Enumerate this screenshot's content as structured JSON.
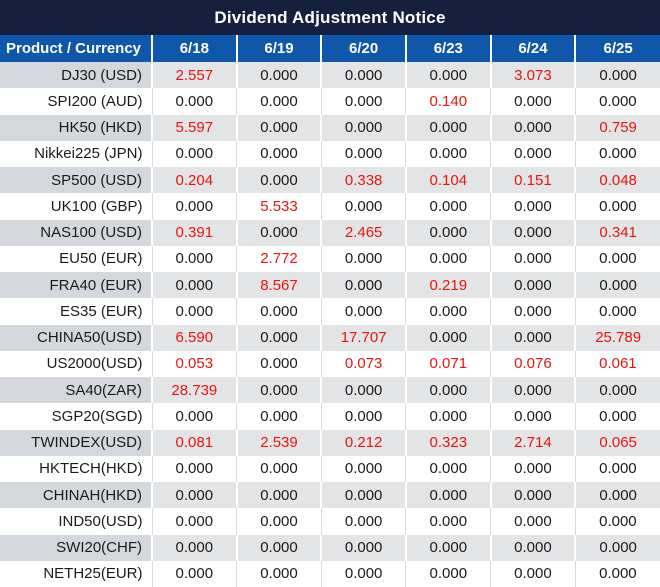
{
  "title": "Dividend Adjustment Notice",
  "colors": {
    "title_bg": "#14203e",
    "header_bg": "#0f57a8",
    "header_text": "#ffffff",
    "zero_text": "#1b1b1b",
    "nonzero_text": "#e8150f",
    "stripe_data_bg": "#e3e4e6",
    "stripe_product_bg": "#d4d7db",
    "white_row_divider": "#d9d9d9"
  },
  "chart_data": {
    "type": "table",
    "title": "Dividend Adjustment Notice",
    "columns": [
      "Product / Currency",
      "6/18",
      "6/19",
      "6/20",
      "6/23",
      "6/24",
      "6/25"
    ],
    "rows": [
      {
        "product": "DJ30 (USD)",
        "values": [
          "2.557",
          "0.000",
          "0.000",
          "0.000",
          "3.073",
          "0.000"
        ]
      },
      {
        "product": "SPI200 (AUD)",
        "values": [
          "0.000",
          "0.000",
          "0.000",
          "0.140",
          "0.000",
          "0.000"
        ]
      },
      {
        "product": "HK50 (HKD)",
        "values": [
          "5.597",
          "0.000",
          "0.000",
          "0.000",
          "0.000",
          "0.759"
        ]
      },
      {
        "product": "Nikkei225 (JPN)",
        "values": [
          "0.000",
          "0.000",
          "0.000",
          "0.000",
          "0.000",
          "0.000"
        ]
      },
      {
        "product": "SP500 (USD)",
        "values": [
          "0.204",
          "0.000",
          "0.338",
          "0.104",
          "0.151",
          "0.048"
        ]
      },
      {
        "product": "UK100 (GBP)",
        "values": [
          "0.000",
          "5.533",
          "0.000",
          "0.000",
          "0.000",
          "0.000"
        ]
      },
      {
        "product": "NAS100 (USD)",
        "values": [
          "0.391",
          "0.000",
          "2.465",
          "0.000",
          "0.000",
          "0.341"
        ]
      },
      {
        "product": "EU50 (EUR)",
        "values": [
          "0.000",
          "2.772",
          "0.000",
          "0.000",
          "0.000",
          "0.000"
        ]
      },
      {
        "product": "FRA40 (EUR)",
        "values": [
          "0.000",
          "8.567",
          "0.000",
          "0.219",
          "0.000",
          "0.000"
        ]
      },
      {
        "product": "ES35 (EUR)",
        "values": [
          "0.000",
          "0.000",
          "0.000",
          "0.000",
          "0.000",
          "0.000"
        ]
      },
      {
        "product": "CHINA50(USD)",
        "values": [
          "6.590",
          "0.000",
          "17.707",
          "0.000",
          "0.000",
          "25.789"
        ]
      },
      {
        "product": "US2000(USD)",
        "values": [
          "0.053",
          "0.000",
          "0.073",
          "0.071",
          "0.076",
          "0.061"
        ]
      },
      {
        "product": "SA40(ZAR)",
        "values": [
          "28.739",
          "0.000",
          "0.000",
          "0.000",
          "0.000",
          "0.000"
        ]
      },
      {
        "product": "SGP20(SGD)",
        "values": [
          "0.000",
          "0.000",
          "0.000",
          "0.000",
          "0.000",
          "0.000"
        ]
      },
      {
        "product": "TWINDEX(USD)",
        "values": [
          "0.081",
          "2.539",
          "0.212",
          "0.323",
          "2.714",
          "0.065"
        ]
      },
      {
        "product": "HKTECH(HKD)",
        "values": [
          "0.000",
          "0.000",
          "0.000",
          "0.000",
          "0.000",
          "0.000"
        ]
      },
      {
        "product": "CHINAH(HKD)",
        "values": [
          "0.000",
          "0.000",
          "0.000",
          "0.000",
          "0.000",
          "0.000"
        ]
      },
      {
        "product": "IND50(USD)",
        "values": [
          "0.000",
          "0.000",
          "0.000",
          "0.000",
          "0.000",
          "0.000"
        ]
      },
      {
        "product": "SWI20(CHF)",
        "values": [
          "0.000",
          "0.000",
          "0.000",
          "0.000",
          "0.000",
          "0.000"
        ]
      },
      {
        "product": "NETH25(EUR)",
        "values": [
          "0.000",
          "0.000",
          "0.000",
          "0.000",
          "0.000",
          "0.000"
        ]
      }
    ],
    "style_rule": "non-zero dividend values rendered in red, zeros in black",
    "layout": {
      "striped": true,
      "first_column_align": "right",
      "value_align": "center"
    }
  }
}
